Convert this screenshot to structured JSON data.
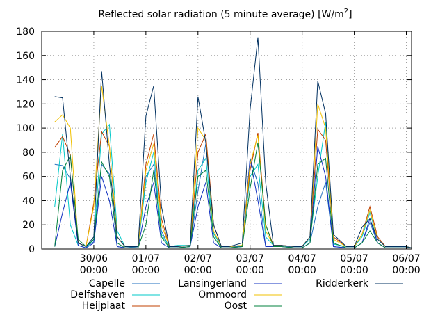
{
  "chart_data": {
    "type": "line",
    "title": "Reflected solar radiation (5 minute average) [W/m",
    "title_superscript": "2",
    "title_suffix": "]",
    "xlabel": "",
    "ylabel": "",
    "ylim": [
      0,
      180
    ],
    "yticks": [
      0,
      20,
      40,
      60,
      80,
      100,
      120,
      140,
      160,
      180
    ],
    "xlim": [
      -1.0,
      6.1
    ],
    "xticks": [
      {
        "value": 0,
        "line1": "30/06",
        "line2": "00:00"
      },
      {
        "value": 1,
        "line1": "01/07",
        "line2": "00:00"
      },
      {
        "value": 2,
        "line1": "02/07",
        "line2": "00:00"
      },
      {
        "value": 3,
        "line1": "03/07",
        "line2": "00:00"
      },
      {
        "value": 4,
        "line1": "04/07",
        "line2": "00:00"
      },
      {
        "value": 5,
        "line1": "05/07",
        "line2": "00:00"
      },
      {
        "value": 6,
        "line1": "06/07",
        "line2": "00:00"
      }
    ],
    "grid": true,
    "legend_position": "bottom",
    "x_unit": "days relative to 30/06 00:00",
    "series": [
      {
        "name": "Capelle",
        "color": "#1f6fbf",
        "x": [
          -0.75,
          -0.6,
          -0.45,
          -0.3,
          -0.15,
          0,
          0.15,
          0.3,
          0.45,
          0.6,
          0.85,
          1,
          1.15,
          1.3,
          1.45,
          1.6,
          1.85,
          2,
          2.15,
          2.3,
          2.45,
          2.6,
          2.85,
          3,
          3.15,
          3.3,
          3.45,
          3.6,
          3.85,
          4,
          4.15,
          4.3,
          4.45,
          4.6,
          4.85,
          5,
          5.15,
          5.3,
          5.45,
          5.6,
          5.85,
          6,
          6.1
        ],
        "y": [
          70,
          69,
          58,
          5,
          2,
          6,
          70,
          62,
          2,
          1,
          2,
          60,
          70,
          15,
          1,
          1,
          2,
          48,
          87,
          13,
          2,
          2,
          2,
          75,
          54,
          2,
          2,
          3,
          1,
          1,
          5,
          35,
          55,
          2,
          1,
          1,
          5,
          22,
          5,
          1,
          1,
          1,
          1
        ]
      },
      {
        "name": "Delfshaven",
        "color": "#00c8c8",
        "x": [
          -0.75,
          -0.6,
          -0.45,
          -0.3,
          -0.15,
          0,
          0.15,
          0.3,
          0.45,
          0.6,
          0.85,
          1,
          1.15,
          1.3,
          1.45,
          1.6,
          1.85,
          2,
          2.15,
          2.3,
          2.45,
          2.6,
          2.85,
          3,
          3.15,
          3.3,
          3.45,
          3.6,
          3.85,
          4,
          4.15,
          4.3,
          4.45,
          4.6,
          4.85,
          5,
          5.15,
          5.3,
          5.45,
          5.6,
          5.85,
          6,
          6.1
        ],
        "y": [
          35,
          95,
          20,
          3,
          1,
          8,
          95,
          103,
          15,
          2,
          2,
          55,
          80,
          12,
          2,
          3,
          3,
          65,
          75,
          13,
          2,
          2,
          3,
          60,
          70,
          10,
          3,
          3,
          2,
          2,
          8,
          60,
          105,
          4,
          2,
          2,
          10,
          30,
          8,
          2,
          2,
          2,
          1
        ]
      },
      {
        "name": "Heijplaat",
        "color": "#c04000",
        "x": [
          -0.75,
          -0.6,
          -0.45,
          -0.3,
          -0.15,
          0,
          0.15,
          0.3,
          0.45,
          0.6,
          0.85,
          1,
          1.15,
          1.3,
          1.45,
          1.6,
          1.85,
          2,
          2.15,
          2.3,
          2.45,
          2.6,
          2.85,
          3,
          3.15,
          3.3,
          3.45,
          3.6,
          3.85,
          4,
          4.15,
          4.3,
          4.45,
          4.6,
          4.85,
          5,
          5.15,
          5.3,
          5.45,
          5.6,
          5.85,
          6,
          6.1
        ],
        "y": [
          84,
          93,
          78,
          5,
          2,
          38,
          97,
          85,
          10,
          2,
          2,
          70,
          95,
          25,
          2,
          2,
          3,
          80,
          95,
          20,
          2,
          2,
          3,
          65,
          96,
          20,
          3,
          3,
          2,
          2,
          10,
          99,
          90,
          10,
          2,
          2,
          12,
          35,
          10,
          2,
          2,
          2,
          1
        ]
      },
      {
        "name": "Lansingerland",
        "color": "#1030c0",
        "x": [
          -0.75,
          -0.6,
          -0.45,
          -0.3,
          -0.15,
          0,
          0.15,
          0.3,
          0.45,
          0.6,
          0.85,
          1,
          1.15,
          1.3,
          1.45,
          1.6,
          1.85,
          2,
          2.15,
          2.3,
          2.45,
          2.6,
          2.85,
          3,
          3.15,
          3.3,
          3.45,
          3.6,
          3.85,
          4,
          4.15,
          4.3,
          4.45,
          4.6,
          4.85,
          5,
          5.15,
          5.3,
          5.45,
          5.6,
          5.85,
          6,
          6.1
        ],
        "y": [
          2,
          30,
          55,
          3,
          1,
          5,
          60,
          40,
          2,
          1,
          1,
          35,
          55,
          5,
          1,
          1,
          2,
          35,
          55,
          5,
          1,
          1,
          2,
          75,
          40,
          2,
          2,
          2,
          1,
          1,
          5,
          85,
          60,
          2,
          1,
          1,
          5,
          25,
          5,
          1,
          1,
          1,
          1
        ]
      },
      {
        "name": "Ommoord",
        "color": "#f0c000",
        "x": [
          -0.75,
          -0.6,
          -0.45,
          -0.3,
          -0.15,
          0,
          0.15,
          0.3,
          0.45,
          0.6,
          0.85,
          1,
          1.15,
          1.3,
          1.45,
          1.6,
          1.85,
          2,
          2.15,
          2.3,
          2.45,
          2.6,
          2.85,
          3,
          3.15,
          3.3,
          3.45,
          3.6,
          3.85,
          4,
          4.15,
          4.3,
          4.45,
          4.6,
          4.85,
          5,
          5.15,
          5.3,
          5.45,
          5.6,
          5.85,
          6,
          6.1
        ],
        "y": [
          105,
          111,
          100,
          5,
          2,
          35,
          135,
          85,
          10,
          2,
          2,
          65,
          87,
          20,
          2,
          2,
          3,
          100,
          90,
          15,
          2,
          2,
          3,
          70,
          94,
          15,
          3,
          3,
          2,
          2,
          10,
          120,
          100,
          8,
          2,
          2,
          12,
          32,
          8,
          2,
          2,
          2,
          1
        ]
      },
      {
        "name": "Oost",
        "color": "#00803c",
        "x": [
          -0.75,
          -0.6,
          -0.45,
          -0.3,
          -0.15,
          0,
          0.15,
          0.3,
          0.45,
          0.6,
          0.85,
          1,
          1.15,
          1.3,
          1.45,
          1.6,
          1.85,
          2,
          2.15,
          2.3,
          2.45,
          2.6,
          2.85,
          3,
          3.15,
          3.3,
          3.45,
          3.6,
          3.85,
          4,
          4.15,
          4.3,
          4.45,
          4.6,
          4.85,
          5,
          5.15,
          5.3,
          5.45,
          5.6,
          5.85,
          6,
          6.1
        ],
        "y": [
          2,
          65,
          77,
          8,
          2,
          8,
          72,
          60,
          5,
          1,
          1,
          20,
          65,
          10,
          1,
          1,
          2,
          60,
          65,
          10,
          1,
          1,
          2,
          50,
          88,
          20,
          2,
          2,
          1,
          1,
          5,
          70,
          75,
          5,
          1,
          1,
          5,
          15,
          5,
          1,
          1,
          1,
          1
        ]
      },
      {
        "name": "Ridderkerk",
        "color": "#003060",
        "x": [
          -0.75,
          -0.6,
          -0.45,
          -0.3,
          -0.15,
          0,
          0.15,
          0.3,
          0.45,
          0.6,
          0.85,
          1,
          1.15,
          1.3,
          1.45,
          1.6,
          1.85,
          2,
          2.15,
          2.3,
          2.45,
          2.6,
          2.85,
          3,
          3.15,
          3.3,
          3.45,
          3.6,
          3.85,
          4,
          4.15,
          4.3,
          4.45,
          4.6,
          4.85,
          5,
          5.15,
          5.3,
          5.45,
          5.6,
          5.85,
          6,
          6.1
        ],
        "y": [
          126,
          125,
          60,
          5,
          2,
          10,
          147,
          70,
          10,
          2,
          2,
          110,
          135,
          35,
          2,
          2,
          3,
          126,
          88,
          20,
          2,
          2,
          5,
          115,
          175,
          55,
          3,
          3,
          2,
          2,
          10,
          139,
          112,
          12,
          2,
          2,
          18,
          25,
          8,
          2,
          2,
          2,
          1
        ]
      }
    ]
  }
}
